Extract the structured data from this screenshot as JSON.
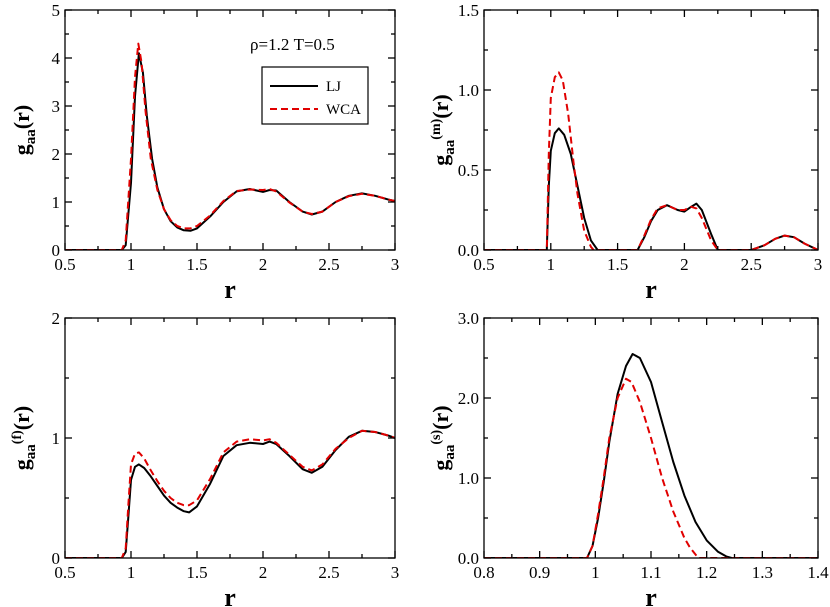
{
  "chart_data": [
    {
      "type": "line",
      "panel": "a",
      "ylabel_main": "g",
      "ylabel_sub": "aa",
      "ylabel_sup": "",
      "ylabel_arg": "(r)",
      "xlabel": "r",
      "xlim": [
        0.5,
        3
      ],
      "ylim": [
        0,
        5
      ],
      "xticks": [
        0.5,
        1,
        1.5,
        2,
        2.5,
        3
      ],
      "xtick_labels": [
        "0.5",
        "1",
        "1.5",
        "2",
        "2.5",
        "3"
      ],
      "yticks": [
        0,
        1,
        2,
        3,
        4,
        5
      ],
      "ytick_labels": [
        "0",
        "1",
        "2",
        "3",
        "4",
        "5"
      ],
      "annotation": "ρ=1.2    T=0.5",
      "legend": [
        {
          "name": "LJ",
          "color": "#000000",
          "dash": "solid"
        },
        {
          "name": "WCA",
          "color": "#e00000",
          "dash": "dashed"
        }
      ],
      "series": [
        {
          "name": "LJ",
          "color": "#000000",
          "dash": "solid",
          "x": [
            0.5,
            0.93,
            0.96,
            1.0,
            1.03,
            1.06,
            1.09,
            1.12,
            1.16,
            1.2,
            1.25,
            1.3,
            1.35,
            1.4,
            1.45,
            1.5,
            1.6,
            1.7,
            1.8,
            1.9,
            2.0,
            2.05,
            2.1,
            2.2,
            2.3,
            2.37,
            2.45,
            2.55,
            2.65,
            2.75,
            2.85,
            2.95,
            3.0
          ],
          "y": [
            0,
            0,
            0.1,
            1.4,
            3.2,
            4.1,
            3.7,
            2.8,
            1.9,
            1.3,
            0.85,
            0.6,
            0.47,
            0.41,
            0.4,
            0.45,
            0.7,
            1.0,
            1.22,
            1.27,
            1.21,
            1.25,
            1.24,
            1.0,
            0.8,
            0.74,
            0.8,
            1.0,
            1.13,
            1.18,
            1.13,
            1.05,
            1.02
          ]
        },
        {
          "name": "WCA",
          "color": "#e00000",
          "dash": "dashed",
          "x": [
            0.5,
            0.93,
            0.96,
            1.0,
            1.03,
            1.055,
            1.08,
            1.11,
            1.15,
            1.2,
            1.25,
            1.3,
            1.35,
            1.4,
            1.45,
            1.5,
            1.6,
            1.7,
            1.8,
            1.9,
            2.0,
            2.05,
            2.1,
            2.2,
            2.3,
            2.37,
            2.45,
            2.55,
            2.65,
            2.75,
            2.85,
            2.95,
            3.0
          ],
          "y": [
            0,
            0,
            0.2,
            1.9,
            3.6,
            4.3,
            3.9,
            2.9,
            1.9,
            1.25,
            0.85,
            0.62,
            0.5,
            0.45,
            0.45,
            0.5,
            0.72,
            1.02,
            1.23,
            1.26,
            1.25,
            1.27,
            1.22,
            0.99,
            0.8,
            0.75,
            0.8,
            1.0,
            1.12,
            1.17,
            1.13,
            1.05,
            1.02
          ]
        }
      ]
    },
    {
      "type": "line",
      "panel": "b",
      "ylabel_main": "g",
      "ylabel_sub": "aa",
      "ylabel_sup": "(m)",
      "ylabel_arg": "(r)",
      "xlabel": "r",
      "xlim": [
        0.5,
        3
      ],
      "ylim": [
        0,
        1.5
      ],
      "xticks": [
        0.5,
        1,
        1.5,
        2,
        2.5,
        3
      ],
      "xtick_labels": [
        "0.5",
        "1",
        "1.5",
        "2",
        "2.5",
        "3"
      ],
      "yticks": [
        0,
        0.5,
        1.0,
        1.5
      ],
      "ytick_labels": [
        "0.0",
        "0.5",
        "1.0",
        "1.5"
      ],
      "series": [
        {
          "name": "LJ",
          "color": "#000000",
          "dash": "solid",
          "x": [
            0.5,
            0.97,
            0.985,
            1.0,
            1.03,
            1.06,
            1.1,
            1.15,
            1.2,
            1.25,
            1.3,
            1.35,
            1.65,
            1.7,
            1.75,
            1.8,
            1.87,
            1.95,
            2.0,
            2.05,
            2.09,
            2.13,
            2.2,
            2.25,
            2.5,
            2.6,
            2.68,
            2.75,
            2.82,
            2.9,
            3.0
          ],
          "y": [
            0,
            0,
            0.4,
            0.62,
            0.73,
            0.76,
            0.72,
            0.6,
            0.4,
            0.2,
            0.06,
            0,
            0,
            0.08,
            0.18,
            0.25,
            0.28,
            0.25,
            0.24,
            0.27,
            0.29,
            0.25,
            0.1,
            0,
            0,
            0.03,
            0.07,
            0.09,
            0.08,
            0.04,
            0.0
          ]
        },
        {
          "name": "WCA",
          "color": "#e00000",
          "dash": "dashed",
          "x": [
            0.5,
            0.97,
            0.985,
            1.0,
            1.03,
            1.06,
            1.09,
            1.13,
            1.17,
            1.2,
            1.25,
            1.3,
            1.32,
            1.65,
            1.7,
            1.75,
            1.8,
            1.87,
            1.95,
            2.0,
            2.05,
            2.09,
            2.13,
            2.2,
            2.25,
            2.5,
            2.6,
            2.68,
            2.75,
            2.82,
            2.9,
            3.0
          ],
          "y": [
            0,
            0,
            0.6,
            0.95,
            1.08,
            1.11,
            1.06,
            0.85,
            0.55,
            0.35,
            0.12,
            0.02,
            0,
            0,
            0.09,
            0.19,
            0.26,
            0.28,
            0.25,
            0.25,
            0.27,
            0.26,
            0.2,
            0.06,
            0,
            0,
            0.03,
            0.07,
            0.09,
            0.08,
            0.04,
            0.0
          ]
        }
      ]
    },
    {
      "type": "line",
      "panel": "c",
      "ylabel_main": "g",
      "ylabel_sub": "aa",
      "ylabel_sup": "(f)",
      "ylabel_arg": "(r)",
      "xlabel": "r",
      "xlim": [
        0.5,
        3
      ],
      "ylim": [
        0,
        2
      ],
      "xticks": [
        0.5,
        1,
        1.5,
        2,
        2.5,
        3
      ],
      "xtick_labels": [
        "0.5",
        "1",
        "1.5",
        "2",
        "2.5",
        "3"
      ],
      "yticks": [
        0,
        1,
        2
      ],
      "ytick_labels": [
        "0",
        "1",
        "2"
      ],
      "series": [
        {
          "name": "LJ",
          "color": "#000000",
          "dash": "solid",
          "x": [
            0.5,
            0.93,
            0.96,
            0.98,
            1.0,
            1.03,
            1.06,
            1.1,
            1.15,
            1.2,
            1.25,
            1.3,
            1.35,
            1.4,
            1.44,
            1.5,
            1.6,
            1.7,
            1.8,
            1.9,
            2.0,
            2.05,
            2.1,
            2.2,
            2.3,
            2.37,
            2.45,
            2.55,
            2.65,
            2.75,
            2.85,
            2.95,
            3.0
          ],
          "y": [
            0,
            0,
            0.05,
            0.35,
            0.65,
            0.76,
            0.78,
            0.75,
            0.68,
            0.6,
            0.52,
            0.46,
            0.42,
            0.39,
            0.38,
            0.43,
            0.62,
            0.85,
            0.94,
            0.96,
            0.95,
            0.97,
            0.95,
            0.85,
            0.74,
            0.71,
            0.76,
            0.9,
            1.01,
            1.06,
            1.05,
            1.02,
            1.0
          ]
        },
        {
          "name": "WCA",
          "color": "#e00000",
          "dash": "dashed",
          "x": [
            0.5,
            0.93,
            0.96,
            0.98,
            1.0,
            1.03,
            1.06,
            1.1,
            1.15,
            1.2,
            1.25,
            1.3,
            1.35,
            1.4,
            1.44,
            1.5,
            1.6,
            1.7,
            1.8,
            1.9,
            2.0,
            2.05,
            2.1,
            2.2,
            2.3,
            2.37,
            2.45,
            2.55,
            2.65,
            2.75,
            2.85,
            2.95,
            3.0
          ],
          "y": [
            0,
            0,
            0.08,
            0.45,
            0.78,
            0.87,
            0.88,
            0.83,
            0.73,
            0.64,
            0.56,
            0.5,
            0.46,
            0.44,
            0.44,
            0.48,
            0.66,
            0.88,
            0.97,
            0.99,
            0.98,
            0.99,
            0.96,
            0.86,
            0.76,
            0.73,
            0.78,
            0.91,
            1.0,
            1.06,
            1.05,
            1.02,
            1.0
          ]
        }
      ]
    },
    {
      "type": "line",
      "panel": "d",
      "ylabel_main": "g",
      "ylabel_sub": "aa",
      "ylabel_sup": "(s)",
      "ylabel_arg": "(r)",
      "xlabel": "r",
      "xlim": [
        0.8,
        1.4
      ],
      "ylim": [
        0,
        3
      ],
      "xticks": [
        0.8,
        0.9,
        1.0,
        1.1,
        1.2,
        1.3,
        1.4
      ],
      "xtick_labels": [
        "0.8",
        "0.9",
        "1",
        "1.1",
        "1.2",
        "1.3",
        "1.4"
      ],
      "yticks": [
        0,
        1,
        2,
        3
      ],
      "ytick_labels": [
        "0.0",
        "1.0",
        "2.0",
        "3.0"
      ],
      "series": [
        {
          "name": "LJ",
          "color": "#000000",
          "dash": "solid",
          "x": [
            0.8,
            0.985,
            0.995,
            1.005,
            1.015,
            1.025,
            1.04,
            1.055,
            1.067,
            1.08,
            1.1,
            1.12,
            1.14,
            1.16,
            1.18,
            1.2,
            1.22,
            1.235,
            1.245,
            1.4
          ],
          "y": [
            0,
            0,
            0.15,
            0.5,
            0.95,
            1.45,
            2.05,
            2.4,
            2.55,
            2.5,
            2.2,
            1.7,
            1.2,
            0.78,
            0.45,
            0.22,
            0.08,
            0.02,
            0,
            0
          ]
        },
        {
          "name": "WCA",
          "color": "#e00000",
          "dash": "dashed",
          "x": [
            0.8,
            0.985,
            0.995,
            1.005,
            1.015,
            1.025,
            1.04,
            1.055,
            1.065,
            1.08,
            1.1,
            1.12,
            1.14,
            1.16,
            1.17,
            1.185,
            1.4
          ],
          "y": [
            0,
            0,
            0.15,
            0.55,
            1.0,
            1.5,
            2.0,
            2.24,
            2.2,
            1.95,
            1.5,
            1.0,
            0.58,
            0.25,
            0.13,
            0,
            0
          ]
        }
      ]
    }
  ]
}
